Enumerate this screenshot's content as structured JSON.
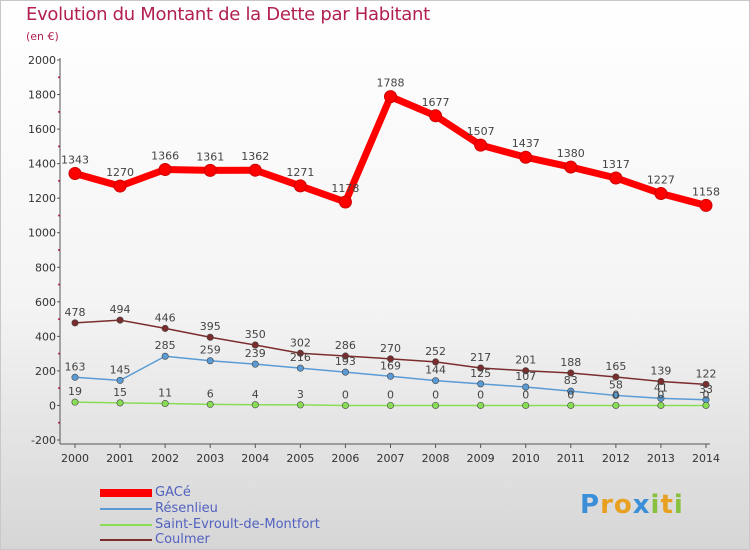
{
  "title": "Evolution du Montant de la Dette par Habitant",
  "subtitle": "(en €)",
  "chart_data": {
    "type": "line",
    "x": [
      "2000",
      "2001",
      "2002",
      "2003",
      "2004",
      "2005",
      "2006",
      "2007",
      "2008",
      "2009",
      "2010",
      "2011",
      "2012",
      "2013",
      "2014"
    ],
    "ylim": [
      -200,
      2000
    ],
    "yticks": [
      -200,
      0,
      200,
      400,
      600,
      800,
      1000,
      1200,
      1400,
      1600,
      1800,
      2000
    ],
    "grid": false,
    "legend_position": "bottom-left",
    "series": [
      {
        "name": "GACé",
        "color": "#ff0000",
        "values": [
          1343,
          1270,
          1366,
          1361,
          1362,
          1271,
          1178,
          1788,
          1677,
          1507,
          1437,
          1380,
          1317,
          1227,
          1158
        ]
      },
      {
        "name": "Résenlieu",
        "color": "#5a9bd5",
        "values": [
          163,
          145,
          285,
          259,
          239,
          216,
          193,
          169,
          144,
          125,
          107,
          83,
          58,
          41,
          33
        ]
      },
      {
        "name": "Saint-Evroult-de-Montfort",
        "color": "#88dd55",
        "values": [
          19,
          15,
          11,
          6,
          4,
          3,
          0,
          0,
          0,
          0,
          0,
          0,
          0,
          0,
          0
        ]
      },
      {
        "name": "Coulmer",
        "color": "#7b2d2d",
        "values": [
          478,
          494,
          446,
          395,
          350,
          302,
          286,
          270,
          252,
          217,
          201,
          188,
          165,
          139,
          122
        ]
      }
    ]
  },
  "logo": {
    "letters": [
      "P",
      "r",
      "o",
      "x",
      "i",
      "t",
      "i"
    ],
    "colors": [
      "#3a8fd8",
      "#e8a020",
      "#e8a020",
      "#3a8fd8",
      "#88c040",
      "#e8a020",
      "#88c040"
    ]
  }
}
